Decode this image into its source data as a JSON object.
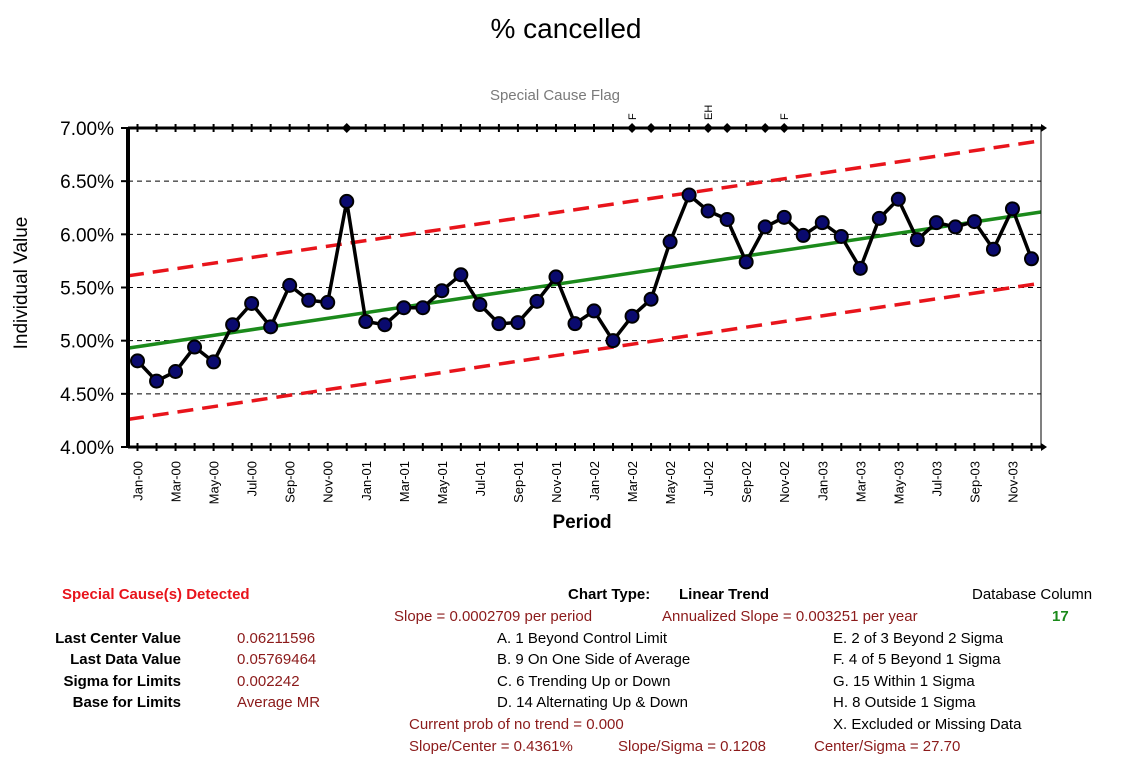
{
  "chart_data": {
    "type": "line",
    "title": "% cancelled",
    "flag_title": "Special Cause Flag",
    "xlabel": "Period",
    "ylabel": "Individual Value",
    "ylim": [
      0.04,
      0.07
    ],
    "y_ticks": [
      "7.00%",
      "6.50%",
      "6.00%",
      "5.50%",
      "5.00%",
      "4.50%",
      "4.00%"
    ],
    "y_tick_values": [
      0.07,
      0.065,
      0.06,
      0.055,
      0.05,
      0.045,
      0.04
    ],
    "x_tick_labels": [
      "Jan-00",
      "Mar-00",
      "May-00",
      "Jul-00",
      "Sep-00",
      "Nov-00",
      "Jan-01",
      "Mar-01",
      "May-01",
      "Jul-01",
      "Sep-01",
      "Nov-01",
      "Jan-02",
      "Mar-02",
      "May-02",
      "Jul-02",
      "Sep-02",
      "Nov-02",
      "Jan-03",
      "Mar-03",
      "May-03",
      "Jul-03",
      "Sep-03",
      "Nov-03"
    ],
    "series": [
      {
        "values": [
          0.0481,
          0.0462,
          0.0471,
          0.0494,
          0.048,
          0.0515,
          0.0535,
          0.0513,
          0.0552,
          0.0538,
          0.0536,
          0.0631,
          0.0518,
          0.0515,
          0.0531,
          0.0531,
          0.0547,
          0.0562,
          0.0534,
          0.0516,
          0.0517,
          0.0537,
          0.056,
          0.0516,
          0.0528,
          0.05,
          0.0523,
          0.0539,
          0.0593,
          0.0637,
          0.0622,
          0.0614,
          0.0574,
          0.0607,
          0.0616,
          0.0599,
          0.0611,
          0.0598,
          0.0568,
          0.0615,
          0.0633,
          0.0595,
          0.0611,
          0.0607,
          0.0612,
          0.0586,
          0.0624,
          0.0577
        ]
      }
    ],
    "center_line": [
      0.0493,
      0.0621
    ],
    "upper_limit": [
      0.0561,
      0.0688
    ],
    "lower_limit": [
      0.0426,
      0.0554
    ],
    "flag_points": [
      11,
      26,
      27,
      30,
      31,
      33,
      34
    ],
    "flag_labels": [
      {
        "index": 26,
        "text": "F"
      },
      {
        "index": 30,
        "text": "EH"
      },
      {
        "index": 34,
        "text": "F"
      }
    ],
    "colors": {
      "data": "#000000",
      "marker_fill": "#0a0a6e",
      "center": "#1b8a1b",
      "limits": "#e8141b"
    },
    "grid": true
  },
  "panel": {
    "special_cause": "Special Cause(s) Detected",
    "chart_type_label": "Chart Type:",
    "chart_type_value": "Linear Trend",
    "database_column_label": "Database Column",
    "database_column_value": "17",
    "slope": "Slope = 0.0002709 per period",
    "annualized_slope": "Annualized Slope = 0.003251 per year",
    "stats": [
      {
        "label": "Last Center Value",
        "value": "0.06211596"
      },
      {
        "label": "Last Data Value",
        "value": "0.05769464"
      },
      {
        "label": "Sigma for Limits",
        "value": "0.002242"
      },
      {
        "label": "Base for Limits",
        "value": "Average MR"
      }
    ],
    "rules_left": [
      "A.  1 Beyond Control Limit",
      "B.  9 On One Side of Average",
      "C.  6 Trending Up or Down",
      "D.  14 Alternating  Up & Down"
    ],
    "rules_right": [
      "E.   2 of 3 Beyond 2 Sigma",
      "F.   4 of 5 Beyond 1 Sigma",
      "G.   15 Within 1 Sigma",
      "H.   8 Outside 1 Sigma",
      "X.   Excluded or Missing Data"
    ],
    "prob_trend": "Current prob of no trend = 0.000",
    "slope_center": "Slope/Center = 0.4361%",
    "slope_sigma": "Slope/Sigma = 0.1208",
    "center_sigma": "Center/Sigma = 27.70"
  }
}
